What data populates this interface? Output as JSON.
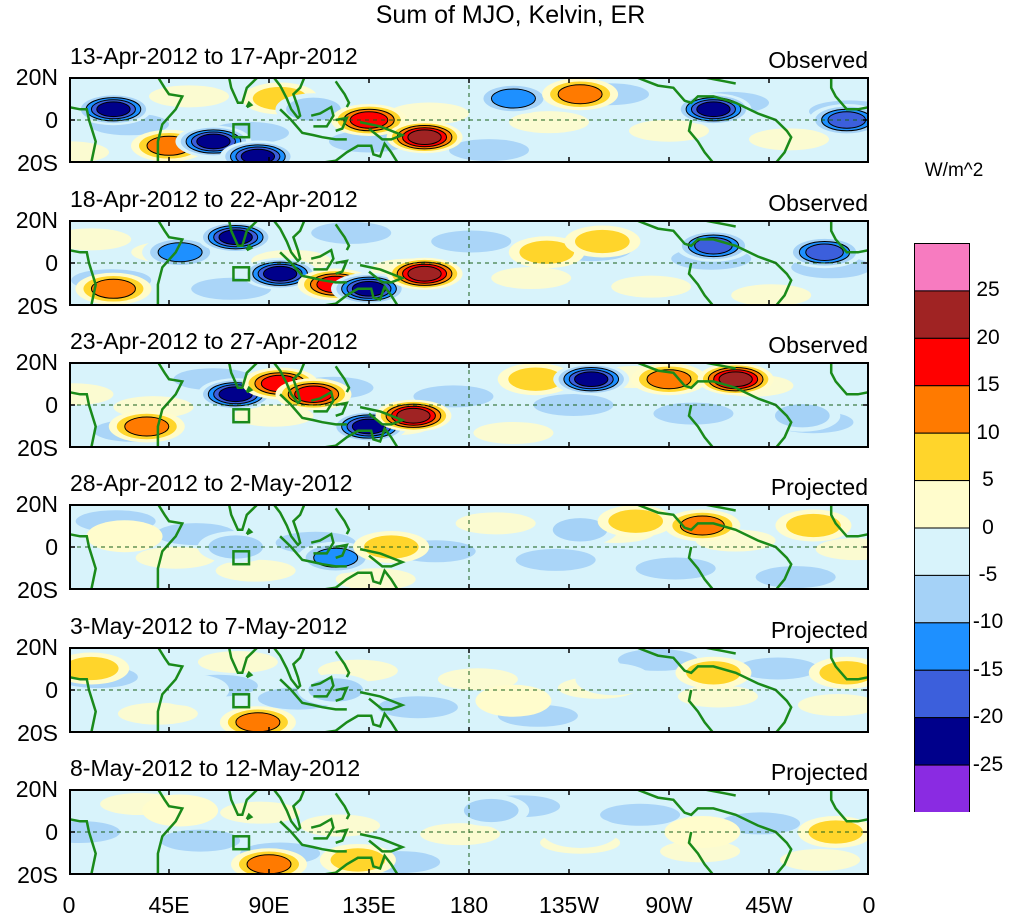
{
  "title": "Sum of MJO, Kelvin, ER",
  "lat_labels": [
    "20N",
    "0",
    "20S"
  ],
  "lon_labels": [
    "0",
    "45E",
    "90E",
    "135E",
    "180",
    "135W",
    "90W",
    "45W",
    "0"
  ],
  "units": "W/m^2",
  "colorbar": {
    "labels": [
      "25",
      "20",
      "15",
      "10",
      "5",
      "0",
      "-5",
      "-10",
      "-15",
      "-20",
      "-25"
    ],
    "colors": [
      "#f77bc0",
      "#a02323",
      "#ff0000",
      "#ff7a00",
      "#ffd52b",
      "#fffccc",
      "#d8f3fb",
      "#a5d2f7",
      "#1e90ff",
      "#3c5fdc",
      "#00008b",
      "#8a2be2"
    ]
  },
  "coast_color": "#1a8a1a",
  "panels": [
    {
      "date": "13-Apr-2012 to 17-Apr-2012",
      "kind": "Observed",
      "anomalies": [
        {
          "lon": 20,
          "lat": 5,
          "value": -25
        },
        {
          "lon": 45,
          "lat": -12,
          "value": 15
        },
        {
          "lon": 65,
          "lat": -10,
          "value": -25
        },
        {
          "lon": 85,
          "lat": -17,
          "value": -25
        },
        {
          "lon": 95,
          "lat": 10,
          "value": 10
        },
        {
          "lon": 110,
          "lat": 5,
          "value": -10
        },
        {
          "lon": 135,
          "lat": 0,
          "value": 20
        },
        {
          "lon": 160,
          "lat": -8,
          "value": 25
        },
        {
          "lon": 200,
          "lat": 10,
          "value": -15
        },
        {
          "lon": 230,
          "lat": 12,
          "value": 15
        },
        {
          "lon": 290,
          "lat": 5,
          "value": -25
        },
        {
          "lon": 350,
          "lat": 0,
          "value": -20
        }
      ]
    },
    {
      "date": "18-Apr-2012 to 22-Apr-2012",
      "kind": "Observed",
      "anomalies": [
        {
          "lon": 20,
          "lat": -12,
          "value": 15
        },
        {
          "lon": 50,
          "lat": 5,
          "value": -15
        },
        {
          "lon": 75,
          "lat": 12,
          "value": -25
        },
        {
          "lon": 95,
          "lat": -5,
          "value": -25
        },
        {
          "lon": 120,
          "lat": -10,
          "value": 20
        },
        {
          "lon": 135,
          "lat": -12,
          "value": -25
        },
        {
          "lon": 160,
          "lat": -5,
          "value": 25
        },
        {
          "lon": 215,
          "lat": 5,
          "value": 10
        },
        {
          "lon": 240,
          "lat": 10,
          "value": 10
        },
        {
          "lon": 290,
          "lat": 8,
          "value": -20
        },
        {
          "lon": 340,
          "lat": 5,
          "value": -20
        }
      ]
    },
    {
      "date": "23-Apr-2012 to 27-Apr-2012",
      "kind": "Observed",
      "anomalies": [
        {
          "lon": 35,
          "lat": -10,
          "value": 15
        },
        {
          "lon": 75,
          "lat": 5,
          "value": -25
        },
        {
          "lon": 95,
          "lat": 10,
          "value": 20
        },
        {
          "lon": 110,
          "lat": 5,
          "value": 20
        },
        {
          "lon": 135,
          "lat": -10,
          "value": -25
        },
        {
          "lon": 155,
          "lat": -5,
          "value": 25
        },
        {
          "lon": 210,
          "lat": 12,
          "value": 10
        },
        {
          "lon": 235,
          "lat": 12,
          "value": -25
        },
        {
          "lon": 270,
          "lat": 12,
          "value": 15
        },
        {
          "lon": 300,
          "lat": 12,
          "value": 25
        },
        {
          "lon": 330,
          "lat": -5,
          "value": -10
        }
      ]
    },
    {
      "date": "28-Apr-2012 to 2-May-2012",
      "kind": "Projected",
      "anomalies": [
        {
          "lon": 25,
          "lat": 5,
          "value": 5
        },
        {
          "lon": 75,
          "lat": 0,
          "value": -10
        },
        {
          "lon": 120,
          "lat": -5,
          "value": -15
        },
        {
          "lon": 145,
          "lat": 0,
          "value": 10
        },
        {
          "lon": 230,
          "lat": 8,
          "value": -10
        },
        {
          "lon": 255,
          "lat": 12,
          "value": 10
        },
        {
          "lon": 285,
          "lat": 10,
          "value": 15
        },
        {
          "lon": 335,
          "lat": 10,
          "value": 10
        }
      ]
    },
    {
      "date": "3-May-2012 to 7-May-2012",
      "kind": "Projected",
      "anomalies": [
        {
          "lon": 10,
          "lat": 10,
          "value": 10
        },
        {
          "lon": 55,
          "lat": 0,
          "value": -5
        },
        {
          "lon": 85,
          "lat": -15,
          "value": 15
        },
        {
          "lon": 120,
          "lat": 0,
          "value": -10
        },
        {
          "lon": 200,
          "lat": -5,
          "value": 5
        },
        {
          "lon": 245,
          "lat": 5,
          "value": -5
        },
        {
          "lon": 290,
          "lat": 8,
          "value": 10
        },
        {
          "lon": 350,
          "lat": 8,
          "value": 10
        }
      ]
    },
    {
      "date": "8-May-2012 to 12-May-2012",
      "kind": "Projected",
      "anomalies": [
        {
          "lon": 50,
          "lat": 10,
          "value": 5
        },
        {
          "lon": 90,
          "lat": -15,
          "value": 15
        },
        {
          "lon": 130,
          "lat": -13,
          "value": 10
        },
        {
          "lon": 190,
          "lat": 10,
          "value": -10
        },
        {
          "lon": 230,
          "lat": 0,
          "value": -5
        },
        {
          "lon": 285,
          "lat": 0,
          "value": 5
        },
        {
          "lon": 345,
          "lat": 0,
          "value": 10
        }
      ]
    }
  ]
}
